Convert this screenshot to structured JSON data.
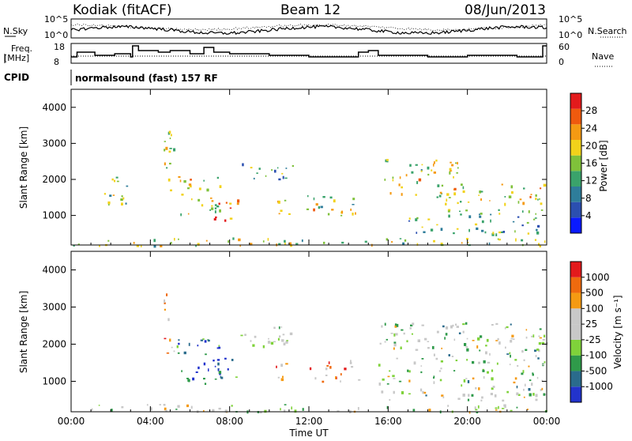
{
  "header": {
    "station": "Kodiak (fitACF)",
    "beam": "Beam 12",
    "date": "08/Jun/2013"
  },
  "side_labels": {
    "nsky": "N.Sky",
    "freq_line1": "Freq.",
    "freq_line2": "[MHz]",
    "cpid": "CPID",
    "nsearch": "N.Search",
    "nave": "Nave"
  },
  "small_panels": {
    "nsky_ticks": [
      "10^5",
      "10^0"
    ],
    "nsearch_ticks": [
      "10^5",
      "10^0"
    ],
    "freq_ticks": [
      "18",
      "8"
    ],
    "nave_ticks": [
      "60",
      "0"
    ]
  },
  "cpid_text": "normalsound (fast) 157 RF",
  "colors": {
    "power_scale": [
      "#0a1aff",
      "#2b4fb0",
      "#2e7d9a",
      "#3aa36b",
      "#7fc13a",
      "#f2d21a",
      "#f59a12",
      "#ef5a0e",
      "#e31a1c"
    ],
    "velocity_scale": [
      "#2233cc",
      "#2a6b8c",
      "#2f9a4a",
      "#7fd23a",
      "#c8c8c8",
      "#c8c8c8",
      "#f59a12",
      "#ef6a0e",
      "#e31a1c"
    ]
  },
  "chart_data": [
    {
      "type": "heatmap",
      "panel": "power",
      "ylabel": "Slant Range [km]",
      "xlabel": "",
      "x_ticks": [
        "00:00",
        "04:00",
        "08:00",
        "12:00",
        "16:00",
        "20:00",
        "00:00"
      ],
      "xlim_hours": [
        0,
        24
      ],
      "ylim": [
        180,
        4500
      ],
      "y_ticks": [
        1000,
        2000,
        3000,
        4000
      ],
      "colorbar": {
        "label": "Power [dB]",
        "ticks": [
          "4",
          "8",
          "12",
          "16",
          "20",
          "24",
          "28"
        ],
        "range": [
          0,
          30
        ]
      },
      "echo_regions": [
        {
          "t": [
            1.5,
            3.0
          ],
          "r": [
            1200,
            2100
          ],
          "level": 0.45
        },
        {
          "t": [
            4.5,
            5.3
          ],
          "r": [
            1700,
            3400
          ],
          "level": 0.55
        },
        {
          "t": [
            5.3,
            7.5
          ],
          "r": [
            900,
            2100
          ],
          "level": 0.6
        },
        {
          "t": [
            7.2,
            8.4
          ],
          "r": [
            850,
            1600
          ],
          "level": 0.75
        },
        {
          "t": [
            8.5,
            11.2
          ],
          "r": [
            2000,
            2500
          ],
          "level": 0.4
        },
        {
          "t": [
            10.0,
            11.0
          ],
          "r": [
            1000,
            1500
          ],
          "level": 0.6
        },
        {
          "t": [
            11.8,
            14.8
          ],
          "r": [
            1000,
            1600
          ],
          "level": 0.55
        },
        {
          "t": [
            15.8,
            19.5
          ],
          "r": [
            1500,
            2600
          ],
          "level": 0.55
        },
        {
          "t": [
            18.5,
            24.0
          ],
          "r": [
            1300,
            1900
          ],
          "level": 0.6
        },
        {
          "t": [
            17.0,
            24.0
          ],
          "r": [
            500,
            1200
          ],
          "level": 0.4
        },
        {
          "t": [
            0.0,
            24.0
          ],
          "r": [
            180,
            400
          ],
          "level": 0.5
        }
      ]
    },
    {
      "type": "heatmap",
      "panel": "velocity",
      "ylabel": "Slant Range [km]",
      "xlabel": "Time UT",
      "x_ticks": [
        "00:00",
        "04:00",
        "08:00",
        "12:00",
        "16:00",
        "20:00",
        "00:00"
      ],
      "xlim_hours": [
        0,
        24
      ],
      "ylim": [
        180,
        4500
      ],
      "y_ticks": [
        1000,
        2000,
        3000,
        4000
      ],
      "colorbar": {
        "label": "Velocity [m s⁻¹]",
        "ticks": [
          "1000",
          "500",
          "100",
          "25",
          "-25",
          "-100",
          "-500",
          "-1000"
        ],
        "range": [
          -1000,
          1000
        ]
      },
      "echo_regions": [
        {
          "t": [
            4.6,
            5.2
          ],
          "r": [
            1700,
            3400
          ],
          "level": 0.7
        },
        {
          "t": [
            5.3,
            7.5
          ],
          "r": [
            900,
            2200
          ],
          "level": 0.15
        },
        {
          "t": [
            7.0,
            8.5
          ],
          "r": [
            1100,
            1700
          ],
          "level": 0.15
        },
        {
          "t": [
            8.5,
            11.2
          ],
          "r": [
            1900,
            2600
          ],
          "level": 0.45
        },
        {
          "t": [
            10.0,
            11.0
          ],
          "r": [
            1000,
            1500
          ],
          "level": 0.8
        },
        {
          "t": [
            12.0,
            14.5
          ],
          "r": [
            1000,
            1600
          ],
          "level": 0.8
        },
        {
          "t": [
            15.5,
            24.0
          ],
          "r": [
            500,
            2600
          ],
          "level": 0.45
        },
        {
          "t": [
            0.0,
            24.0
          ],
          "r": [
            180,
            400
          ],
          "level": 0.5
        }
      ]
    }
  ]
}
